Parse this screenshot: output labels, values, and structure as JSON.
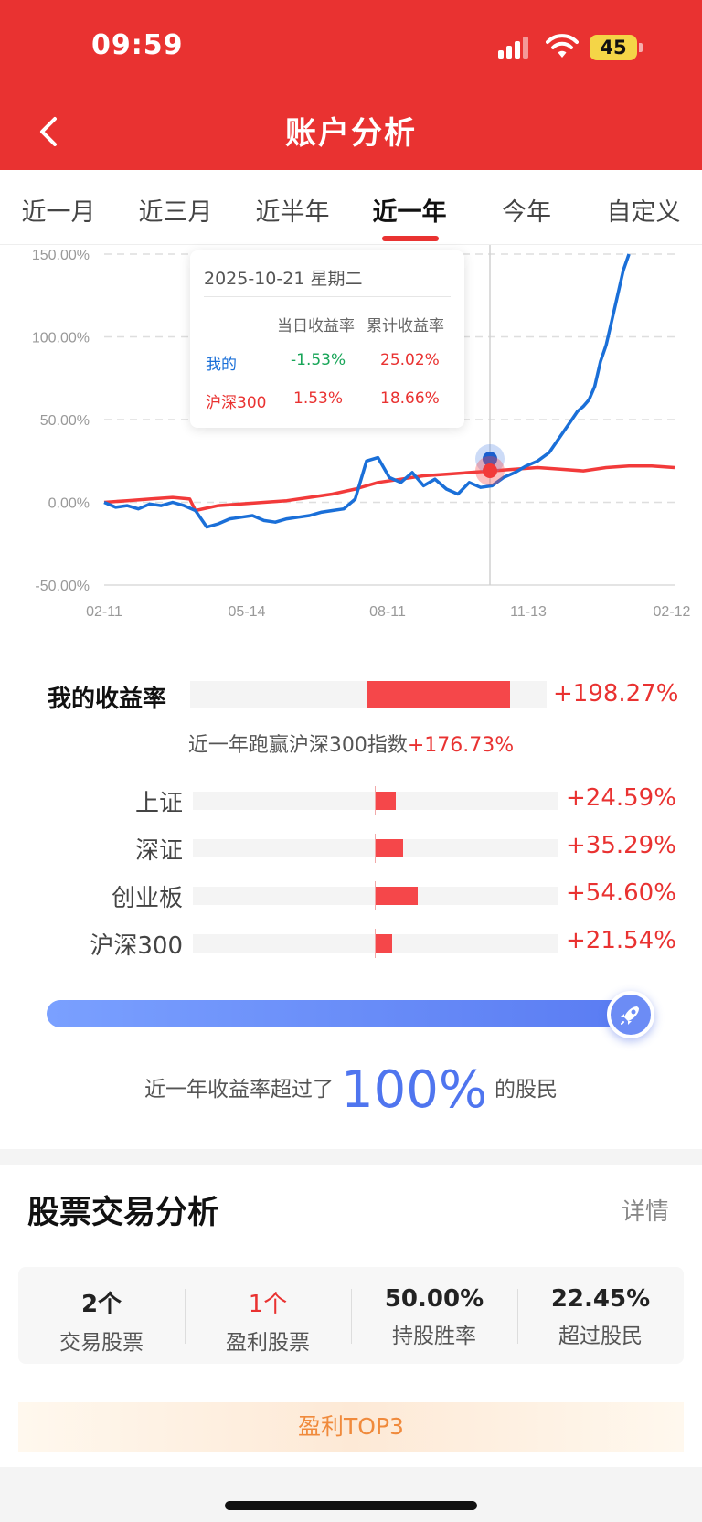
{
  "status_bar": {
    "time": "09:59",
    "battery": "45"
  },
  "header": {
    "title": "账户分析"
  },
  "tabs": [
    {
      "label": "近一月"
    },
    {
      "label": "近三月"
    },
    {
      "label": "近半年"
    },
    {
      "label": "近一年",
      "active": true
    },
    {
      "label": "今年"
    },
    {
      "label": "自定义"
    }
  ],
  "tooltip": {
    "date": "2025-10-21 星期二",
    "col1": "当日收益率",
    "col2": "累计收益率",
    "rows": [
      {
        "name": "我的",
        "daily": "-1.53%",
        "cumulative": "25.02%"
      },
      {
        "name": "沪深300",
        "daily": "1.53%",
        "cumulative": "18.66%"
      }
    ]
  },
  "chart_data": {
    "type": "line",
    "y_ticks": [
      "150.00%",
      "100.00%",
      "50.00%",
      "0.00%",
      "-50.00%"
    ],
    "x_ticks": [
      "02-11",
      "05-14",
      "08-11",
      "11-13",
      "02-12"
    ],
    "ylim": [
      -50,
      150
    ],
    "series": [
      {
        "name": "我的",
        "color": "#1a6fd8",
        "x": [
          0,
          2,
          4,
          6,
          8,
          10,
          12,
          14,
          16,
          18,
          20,
          22,
          24,
          26,
          28,
          30,
          32,
          34,
          36,
          38,
          40,
          42,
          44,
          46,
          48,
          50,
          52,
          54,
          56,
          58,
          60,
          62,
          64,
          66,
          68,
          70,
          72,
          74,
          76,
          78,
          80,
          81,
          82,
          83,
          84,
          85,
          86,
          87,
          88,
          89,
          90,
          91,
          92
        ],
        "y": [
          0,
          -3,
          -2,
          -4,
          -1,
          -2,
          0,
          -2,
          -5,
          -15,
          -13,
          -10,
          -9,
          -8,
          -11,
          -12,
          -10,
          -9,
          -8,
          -6,
          -5,
          -4,
          2,
          25,
          27,
          15,
          12,
          18,
          10,
          14,
          8,
          5,
          12,
          9,
          10,
          15,
          18,
          22,
          25,
          30,
          40,
          45,
          50,
          55,
          58,
          62,
          70,
          85,
          95,
          110,
          125,
          140,
          150
        ]
      },
      {
        "name": "沪深300",
        "color": "#f23a3a",
        "x": [
          0,
          4,
          8,
          12,
          15,
          16,
          20,
          24,
          28,
          32,
          36,
          40,
          44,
          48,
          52,
          56,
          60,
          64,
          68,
          72,
          76,
          80,
          84,
          88,
          92,
          96,
          100
        ],
        "y": [
          0,
          1,
          2,
          3,
          2,
          -5,
          -2,
          -1,
          0,
          1,
          3,
          5,
          8,
          12,
          14,
          16,
          17,
          18,
          19,
          20,
          21,
          20,
          19,
          21,
          22,
          22,
          21
        ]
      }
    ]
  },
  "returns": {
    "my_label": "我的收益率",
    "my_value": "+198.27%",
    "my_fraction": 0.78,
    "beat_text": "近一年跑赢沪深300指数",
    "beat_value": "+176.73%",
    "indices": [
      {
        "name": "上证",
        "value": "+24.59%",
        "fraction": 0.11
      },
      {
        "name": "深证",
        "value": "+35.29%",
        "fraction": 0.15
      },
      {
        "name": "创业板",
        "value": "+54.60%",
        "fraction": 0.23
      },
      {
        "name": "沪深300",
        "value": "+21.54%",
        "fraction": 0.09
      }
    ],
    "exceed_prefix": "近一年收益率超过了",
    "exceed_value": "100%",
    "exceed_suffix": "的股民"
  },
  "stock_analysis": {
    "title": "股票交易分析",
    "detail": "详情",
    "stats": [
      {
        "value": "2个",
        "label": "交易股票"
      },
      {
        "value": "1个",
        "label": "盈利股票",
        "red": true
      },
      {
        "value": "50.00%",
        "label": "持股胜率"
      },
      {
        "value": "22.45%",
        "label": "超过股民"
      }
    ],
    "top3": "盈利TOP3"
  },
  "colors": {
    "primary": "#e93231",
    "blue": "#1a6fd8",
    "accent_blue": "#4f75ef",
    "green": "#18a558"
  },
  "icons": [
    "signal-icon",
    "wifi-icon",
    "battery-icon",
    "back-arrow-icon",
    "rocket-icon"
  ]
}
